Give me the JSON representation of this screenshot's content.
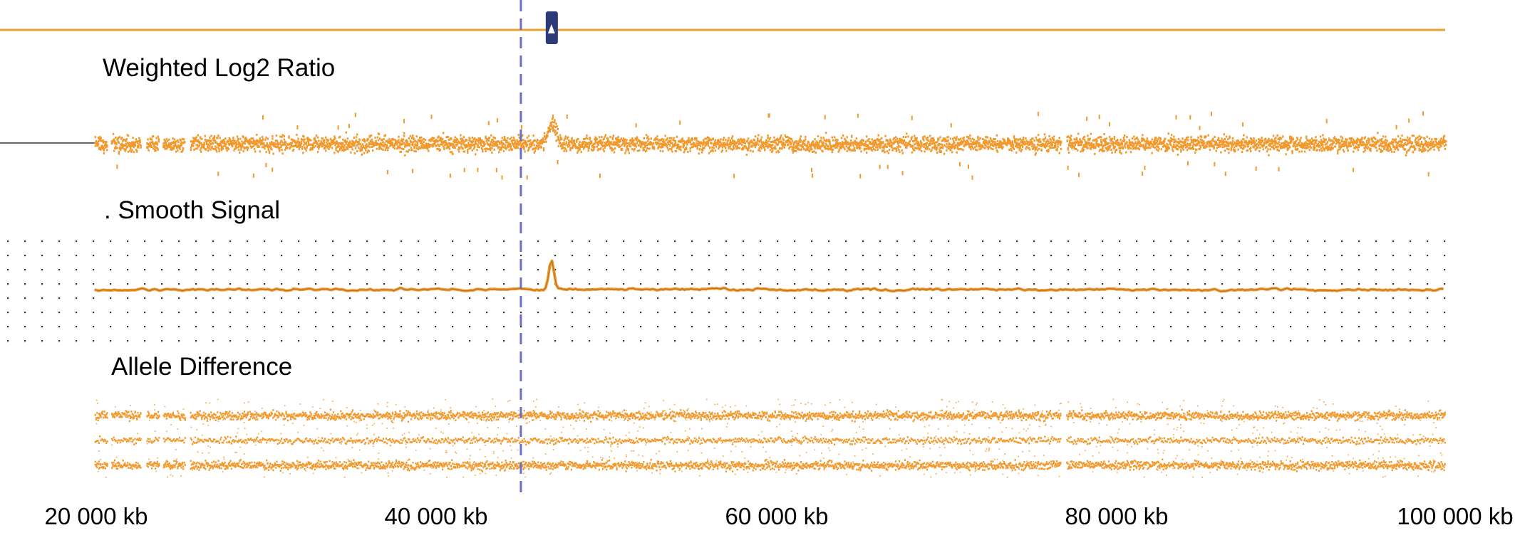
{
  "chart_data": {
    "type": "scatter",
    "x_axis": {
      "unit": "kb",
      "range_kb": [
        14000,
        100000
      ],
      "ticks": [
        {
          "value": 20000,
          "label": "20 000 kb"
        },
        {
          "value": 40000,
          "label": "40 000 kb"
        },
        {
          "value": 60000,
          "label": "60 000 kb"
        },
        {
          "value": 80000,
          "label": "80 000 kb"
        },
        {
          "value": 100000,
          "label": "100 000 kb"
        }
      ]
    },
    "cursor_position_kb": 45000,
    "marker_position_kb": 46800,
    "gaps_kb": [
      [
        20620,
        20850
      ],
      [
        22620,
        22900
      ],
      [
        23680,
        23900
      ],
      [
        25200,
        25500
      ],
      [
        76780,
        77080
      ]
    ],
    "tracks": [
      {
        "id": "log2",
        "title": "Weighted Log2 Ratio",
        "plot_type": "scatter-band",
        "data_start_kb": 19900,
        "baseline": 0.0,
        "peak": {
          "center_kb": 46800,
          "height": 0.35
        }
      },
      {
        "id": "smooth",
        "title": ". Smooth Signal",
        "plot_type": "line",
        "data_start_kb": 19900,
        "baseline": 0.0,
        "peak": {
          "center_kb": 46800,
          "height": 0.6
        },
        "dotted_grid": true
      },
      {
        "id": "allele",
        "title": "Allele Difference",
        "plot_type": "scatter-bands",
        "data_start_kb": 19900,
        "bands": [
          1,
          0,
          -1
        ]
      }
    ],
    "colors": {
      "data": "#f2992e",
      "top_line": "#e6a030",
      "cursor": "#6a6fc8",
      "marker": "#2c3a7a",
      "baseline_left": "#666666",
      "grid_dots": "#333333",
      "smooth_line_core": "#7a5522"
    },
    "grid": true,
    "legend": "none"
  }
}
